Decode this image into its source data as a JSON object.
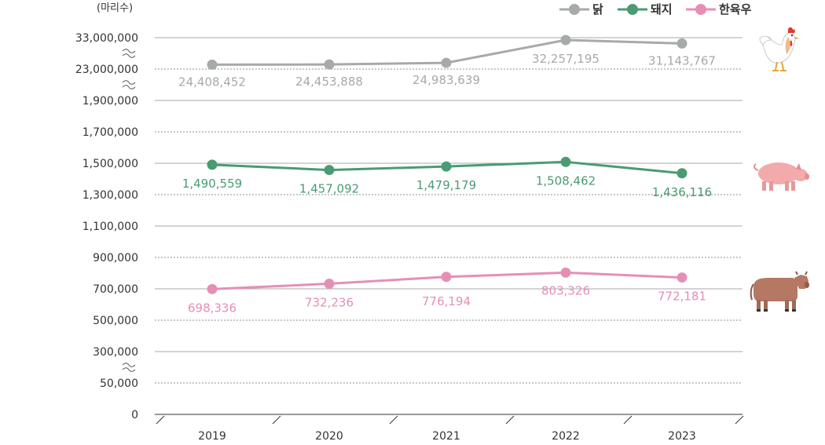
{
  "chart_data": {
    "type": "line",
    "unit_label": "(마리수)",
    "categories": [
      "2019",
      "2020",
      "2021",
      "2022",
      "2023"
    ],
    "y_ticks": [
      "33,000,000",
      "23,000,000",
      "1,900,000",
      "1,700,000",
      "1,500,000",
      "1,300,000",
      "1,100,000",
      "900,000",
      "700,000",
      "500,000",
      "300,000",
      "50,000",
      "0"
    ],
    "grid": true,
    "axis_breaks": true,
    "legend_position": "top-right",
    "series": [
      {
        "name": "닭",
        "color": "#a6aaa8",
        "icon": "chicken-icon",
        "values": [
          24408452,
          24453888,
          24983639,
          32257195,
          31143767
        ],
        "labels": [
          "24,408,452",
          "24,453,888",
          "24,983,639",
          "32,257,195",
          "31,143,767"
        ]
      },
      {
        "name": "돼지",
        "color": "#4a9b72",
        "icon": "pig-icon",
        "values": [
          1490559,
          1457092,
          1479179,
          1508462,
          1436116
        ],
        "labels": [
          "1,490,559",
          "1,457,092",
          "1,479,179",
          "1,508,462",
          "1,436,116"
        ]
      },
      {
        "name": "한육우",
        "color": "#e58fb6",
        "icon": "cow-icon",
        "values": [
          698336,
          732236,
          776194,
          803326,
          772181
        ],
        "labels": [
          "698,336",
          "732,236",
          "776,194",
          "803,326",
          "772,181"
        ]
      }
    ]
  }
}
